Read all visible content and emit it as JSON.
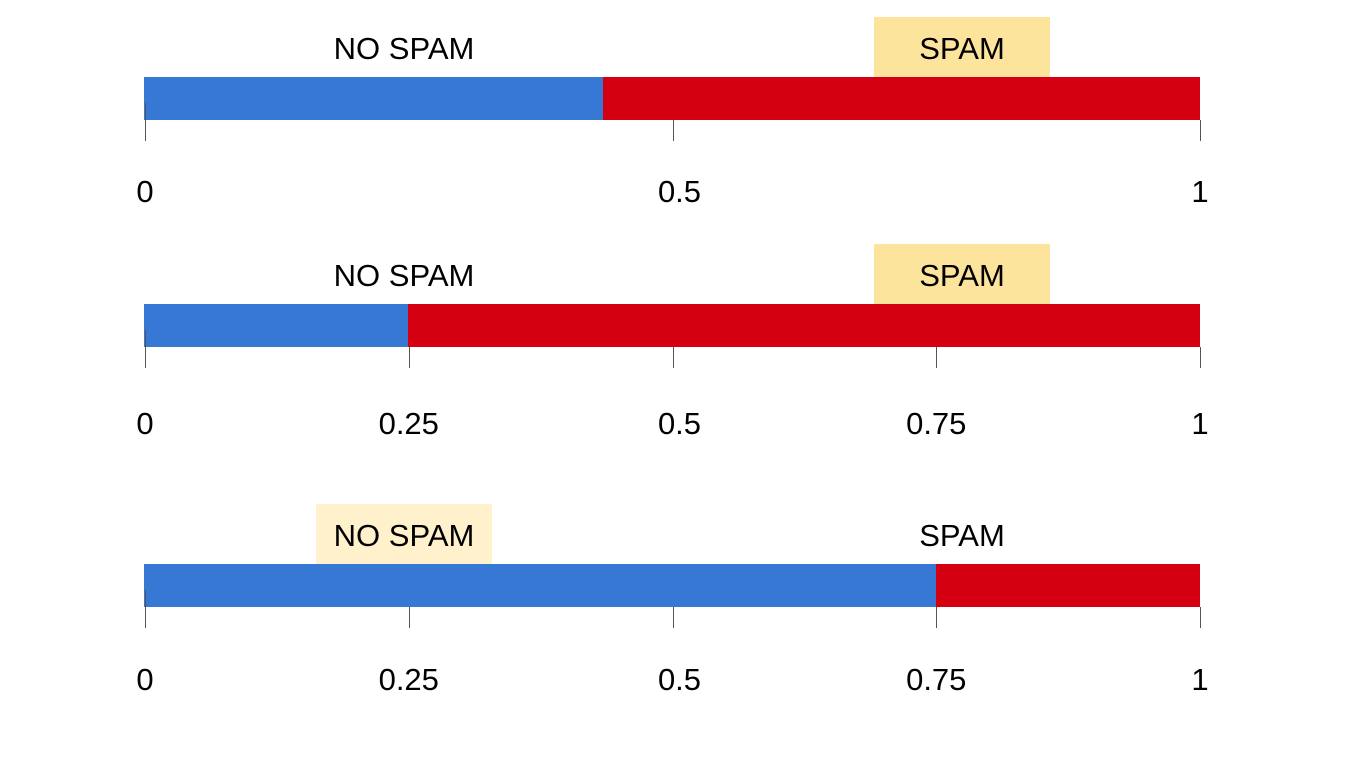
{
  "colors": {
    "no_spam": "#3778d5",
    "spam": "#d40011",
    "highlight_strong": "#fde49d",
    "highlight_soft": "#fef1cc"
  },
  "rows": [
    {
      "no_spam_label": "NO SPAM",
      "spam_label": "SPAM",
      "highlighted": "spam",
      "threshold": 0.435,
      "ticks": [
        {
          "value": 0,
          "label": "0"
        },
        {
          "value": 0.5,
          "label": "0.5"
        },
        {
          "value": 1,
          "label": "1"
        }
      ]
    },
    {
      "no_spam_label": "NO SPAM",
      "spam_label": "SPAM",
      "highlighted": "spam",
      "threshold": 0.25,
      "ticks": [
        {
          "value": 0,
          "label": "0"
        },
        {
          "value": 0.25,
          "label": "0.25"
        },
        {
          "value": 0.5,
          "label": "0.5"
        },
        {
          "value": 0.75,
          "label": "0.75"
        },
        {
          "value": 1,
          "label": "1"
        }
      ]
    },
    {
      "no_spam_label": "NO SPAM",
      "spam_label": "SPAM",
      "highlighted": "no_spam",
      "threshold": 0.75,
      "ticks": [
        {
          "value": 0,
          "label": "0"
        },
        {
          "value": 0.25,
          "label": "0.25"
        },
        {
          "value": 0.5,
          "label": "0.5"
        },
        {
          "value": 0.75,
          "label": "0.75"
        },
        {
          "value": 1,
          "label": "1"
        }
      ]
    }
  ]
}
